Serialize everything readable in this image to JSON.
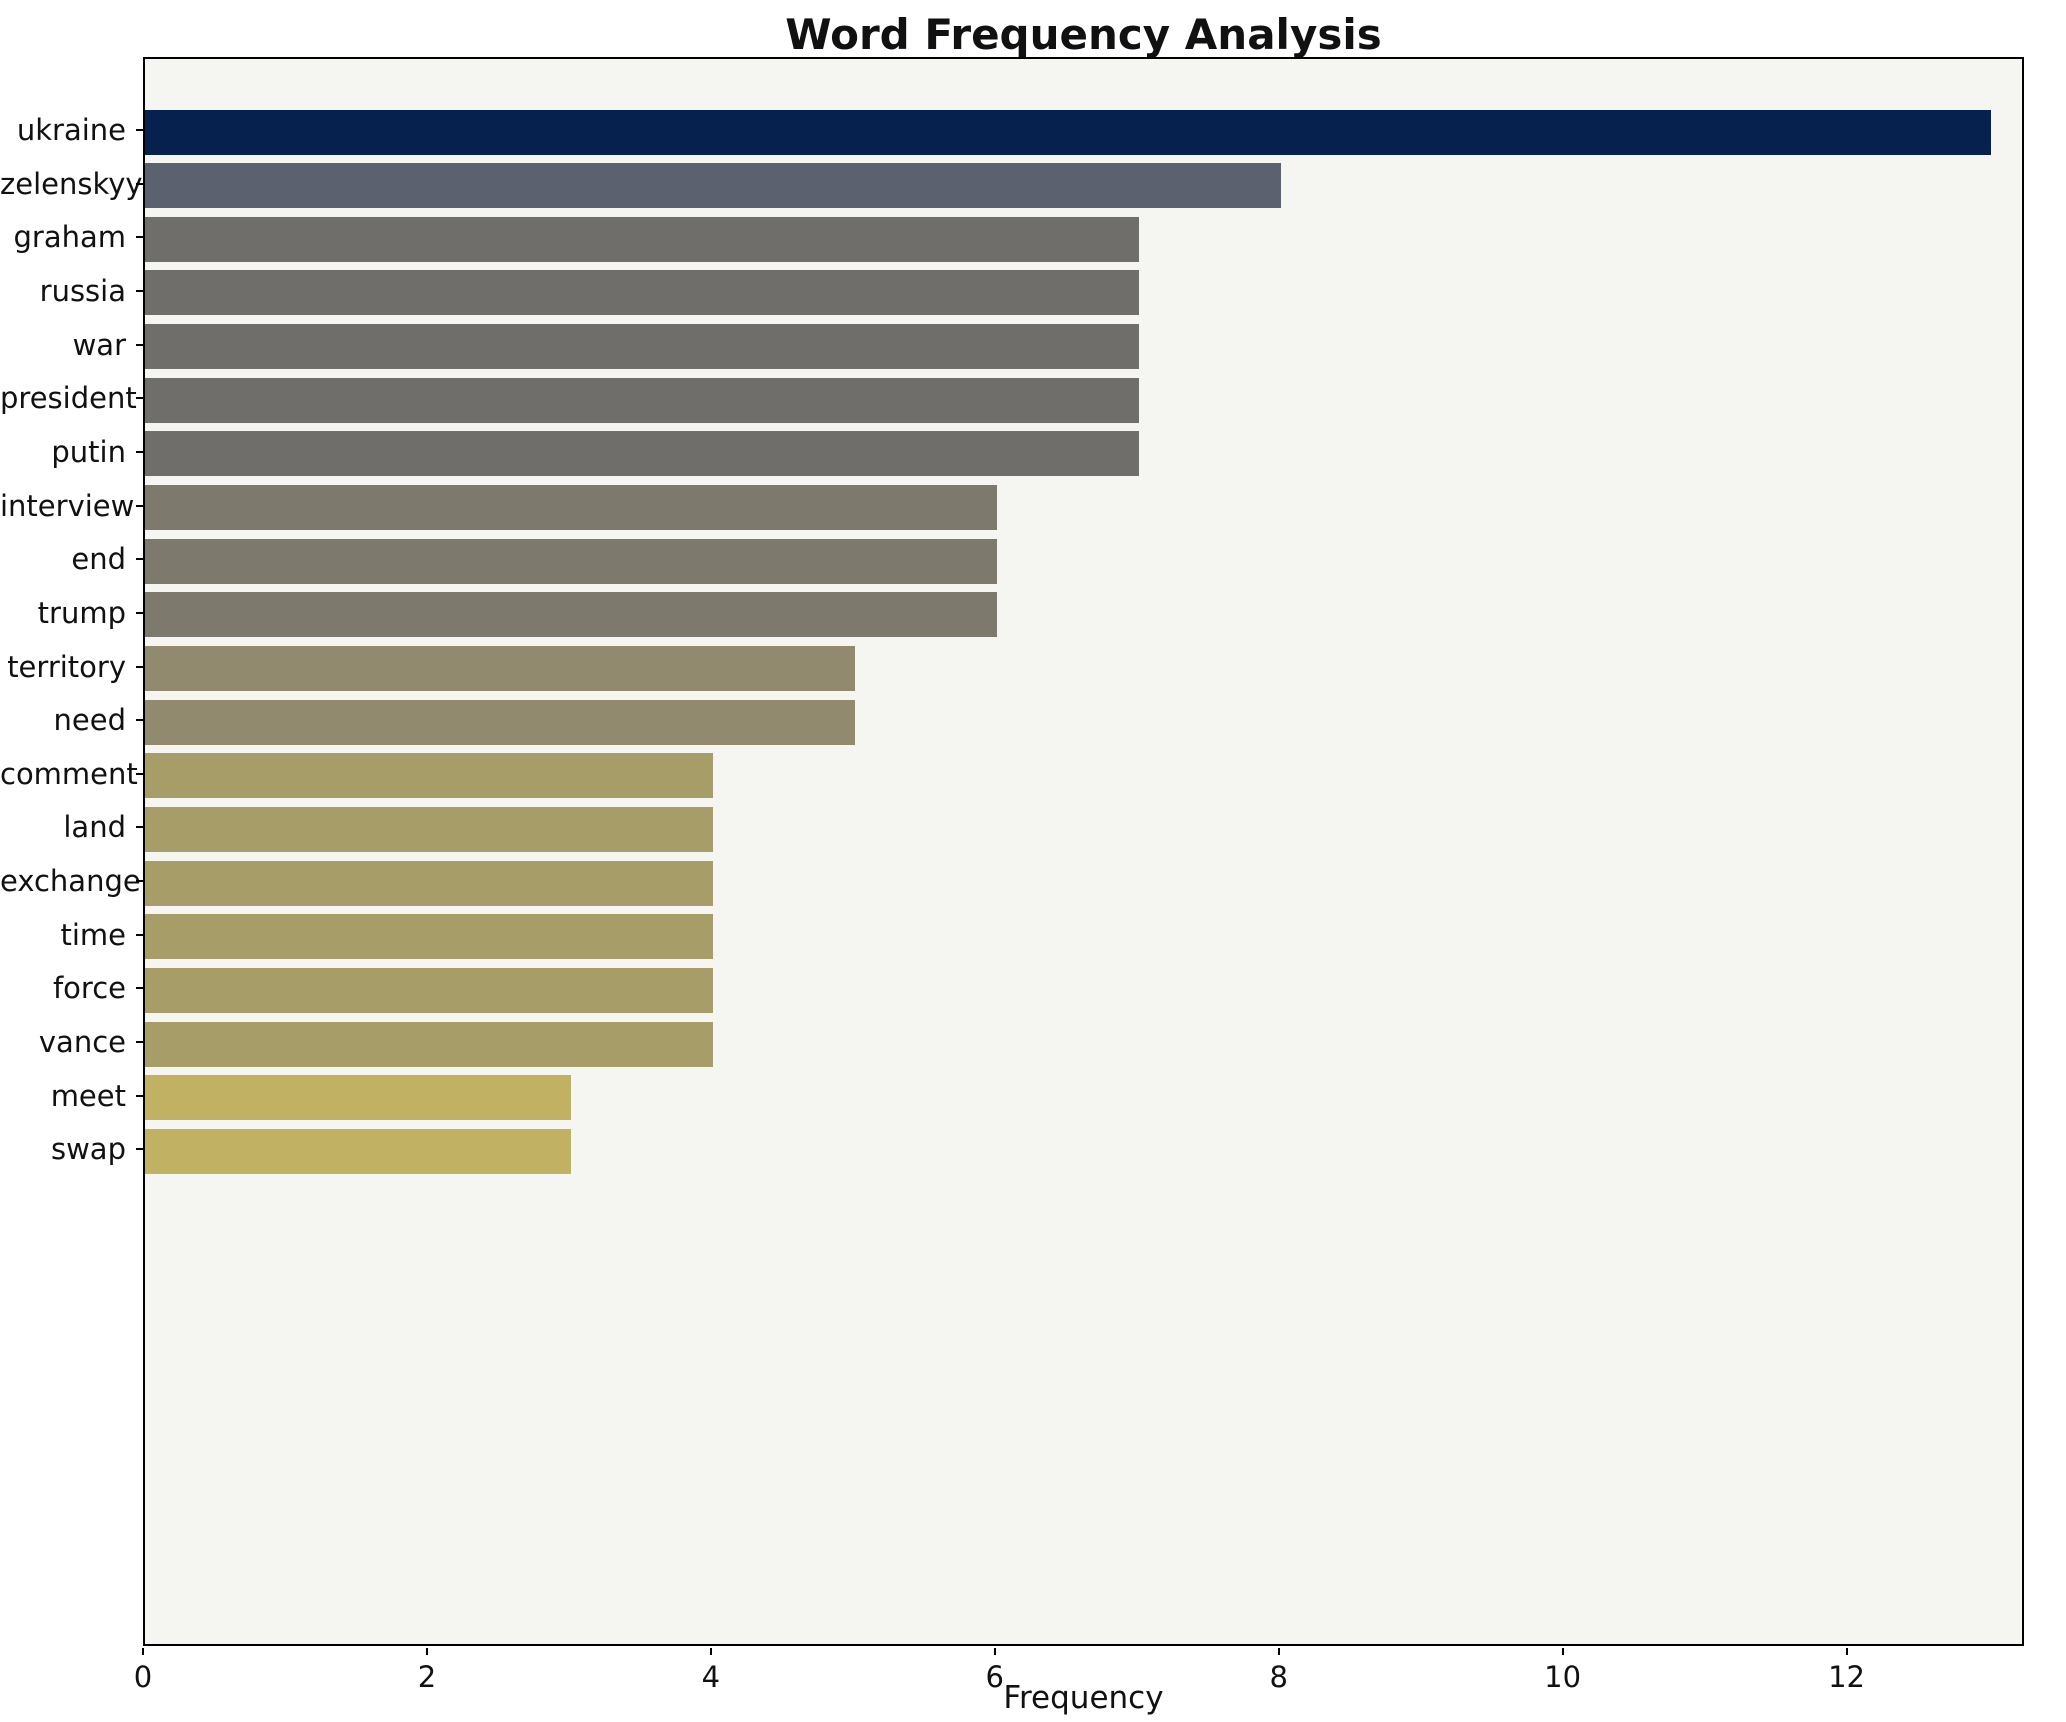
{
  "chart_data": {
    "type": "bar",
    "orientation": "horizontal",
    "title": "Word Frequency Analysis",
    "xlabel": "Frequency",
    "ylabel": "",
    "categories": [
      "ukraine",
      "zelenskyy",
      "graham",
      "russia",
      "war",
      "president",
      "putin",
      "interview",
      "end",
      "trump",
      "territory",
      "need",
      "comment",
      "land",
      "exchange",
      "time",
      "force",
      "vance",
      "meet",
      "swap"
    ],
    "values": [
      13,
      8,
      7,
      7,
      7,
      7,
      7,
      6,
      6,
      6,
      5,
      5,
      4,
      4,
      4,
      4,
      4,
      4,
      3,
      3
    ],
    "bar_colors": [
      "#07214e",
      "#5c6170",
      "#6f6e6a",
      "#6f6e6a",
      "#6f6e6a",
      "#6f6e6a",
      "#6f6e6a",
      "#7d796c",
      "#7d796c",
      "#7d796c",
      "#918a6e",
      "#918a6e",
      "#a69d69",
      "#a69d69",
      "#a69d69",
      "#a69d69",
      "#a69d69",
      "#a69d69",
      "#c0b163",
      "#c0b163"
    ],
    "xlim": [
      0,
      13.25
    ],
    "xticks": [
      0,
      2,
      4,
      6,
      8,
      10,
      12
    ],
    "grid": false,
    "legend": "none",
    "plot_background": "#f5f5f1",
    "figure_background": "#ffffff",
    "spine_color": "#000000"
  }
}
